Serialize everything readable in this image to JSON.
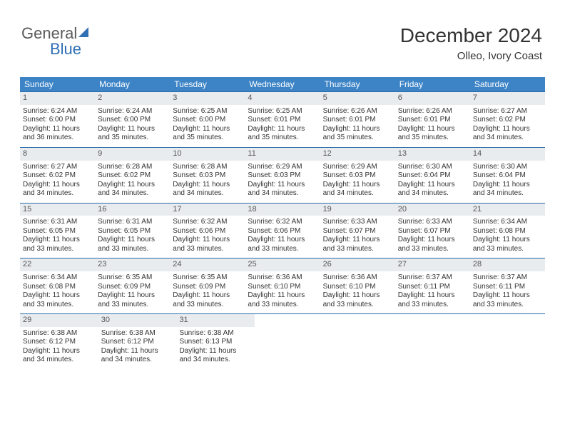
{
  "logo": {
    "text1": "General",
    "text2": "Blue"
  },
  "title": "December 2024",
  "location": "Olleo, Ivory Coast",
  "colors": {
    "header_bg": "#3d84c6",
    "row_border": "#2a6aa8",
    "daynum_bg": "#e9ecef",
    "text": "#333333",
    "logo_gray": "#5a5a5a",
    "logo_blue": "#2f6fb3"
  },
  "weekdays": [
    "Sunday",
    "Monday",
    "Tuesday",
    "Wednesday",
    "Thursday",
    "Friday",
    "Saturday"
  ],
  "weeks": [
    [
      {
        "n": "1",
        "sr": "Sunrise: 6:24 AM",
        "ss": "Sunset: 6:00 PM",
        "d1": "Daylight: 11 hours",
        "d2": "and 36 minutes."
      },
      {
        "n": "2",
        "sr": "Sunrise: 6:24 AM",
        "ss": "Sunset: 6:00 PM",
        "d1": "Daylight: 11 hours",
        "d2": "and 35 minutes."
      },
      {
        "n": "3",
        "sr": "Sunrise: 6:25 AM",
        "ss": "Sunset: 6:00 PM",
        "d1": "Daylight: 11 hours",
        "d2": "and 35 minutes."
      },
      {
        "n": "4",
        "sr": "Sunrise: 6:25 AM",
        "ss": "Sunset: 6:01 PM",
        "d1": "Daylight: 11 hours",
        "d2": "and 35 minutes."
      },
      {
        "n": "5",
        "sr": "Sunrise: 6:26 AM",
        "ss": "Sunset: 6:01 PM",
        "d1": "Daylight: 11 hours",
        "d2": "and 35 minutes."
      },
      {
        "n": "6",
        "sr": "Sunrise: 6:26 AM",
        "ss": "Sunset: 6:01 PM",
        "d1": "Daylight: 11 hours",
        "d2": "and 35 minutes."
      },
      {
        "n": "7",
        "sr": "Sunrise: 6:27 AM",
        "ss": "Sunset: 6:02 PM",
        "d1": "Daylight: 11 hours",
        "d2": "and 34 minutes."
      }
    ],
    [
      {
        "n": "8",
        "sr": "Sunrise: 6:27 AM",
        "ss": "Sunset: 6:02 PM",
        "d1": "Daylight: 11 hours",
        "d2": "and 34 minutes."
      },
      {
        "n": "9",
        "sr": "Sunrise: 6:28 AM",
        "ss": "Sunset: 6:02 PM",
        "d1": "Daylight: 11 hours",
        "d2": "and 34 minutes."
      },
      {
        "n": "10",
        "sr": "Sunrise: 6:28 AM",
        "ss": "Sunset: 6:03 PM",
        "d1": "Daylight: 11 hours",
        "d2": "and 34 minutes."
      },
      {
        "n": "11",
        "sr": "Sunrise: 6:29 AM",
        "ss": "Sunset: 6:03 PM",
        "d1": "Daylight: 11 hours",
        "d2": "and 34 minutes."
      },
      {
        "n": "12",
        "sr": "Sunrise: 6:29 AM",
        "ss": "Sunset: 6:03 PM",
        "d1": "Daylight: 11 hours",
        "d2": "and 34 minutes."
      },
      {
        "n": "13",
        "sr": "Sunrise: 6:30 AM",
        "ss": "Sunset: 6:04 PM",
        "d1": "Daylight: 11 hours",
        "d2": "and 34 minutes."
      },
      {
        "n": "14",
        "sr": "Sunrise: 6:30 AM",
        "ss": "Sunset: 6:04 PM",
        "d1": "Daylight: 11 hours",
        "d2": "and 34 minutes."
      }
    ],
    [
      {
        "n": "15",
        "sr": "Sunrise: 6:31 AM",
        "ss": "Sunset: 6:05 PM",
        "d1": "Daylight: 11 hours",
        "d2": "and 33 minutes."
      },
      {
        "n": "16",
        "sr": "Sunrise: 6:31 AM",
        "ss": "Sunset: 6:05 PM",
        "d1": "Daylight: 11 hours",
        "d2": "and 33 minutes."
      },
      {
        "n": "17",
        "sr": "Sunrise: 6:32 AM",
        "ss": "Sunset: 6:06 PM",
        "d1": "Daylight: 11 hours",
        "d2": "and 33 minutes."
      },
      {
        "n": "18",
        "sr": "Sunrise: 6:32 AM",
        "ss": "Sunset: 6:06 PM",
        "d1": "Daylight: 11 hours",
        "d2": "and 33 minutes."
      },
      {
        "n": "19",
        "sr": "Sunrise: 6:33 AM",
        "ss": "Sunset: 6:07 PM",
        "d1": "Daylight: 11 hours",
        "d2": "and 33 minutes."
      },
      {
        "n": "20",
        "sr": "Sunrise: 6:33 AM",
        "ss": "Sunset: 6:07 PM",
        "d1": "Daylight: 11 hours",
        "d2": "and 33 minutes."
      },
      {
        "n": "21",
        "sr": "Sunrise: 6:34 AM",
        "ss": "Sunset: 6:08 PM",
        "d1": "Daylight: 11 hours",
        "d2": "and 33 minutes."
      }
    ],
    [
      {
        "n": "22",
        "sr": "Sunrise: 6:34 AM",
        "ss": "Sunset: 6:08 PM",
        "d1": "Daylight: 11 hours",
        "d2": "and 33 minutes."
      },
      {
        "n": "23",
        "sr": "Sunrise: 6:35 AM",
        "ss": "Sunset: 6:09 PM",
        "d1": "Daylight: 11 hours",
        "d2": "and 33 minutes."
      },
      {
        "n": "24",
        "sr": "Sunrise: 6:35 AM",
        "ss": "Sunset: 6:09 PM",
        "d1": "Daylight: 11 hours",
        "d2": "and 33 minutes."
      },
      {
        "n": "25",
        "sr": "Sunrise: 6:36 AM",
        "ss": "Sunset: 6:10 PM",
        "d1": "Daylight: 11 hours",
        "d2": "and 33 minutes."
      },
      {
        "n": "26",
        "sr": "Sunrise: 6:36 AM",
        "ss": "Sunset: 6:10 PM",
        "d1": "Daylight: 11 hours",
        "d2": "and 33 minutes."
      },
      {
        "n": "27",
        "sr": "Sunrise: 6:37 AM",
        "ss": "Sunset: 6:11 PM",
        "d1": "Daylight: 11 hours",
        "d2": "and 33 minutes."
      },
      {
        "n": "28",
        "sr": "Sunrise: 6:37 AM",
        "ss": "Sunset: 6:11 PM",
        "d1": "Daylight: 11 hours",
        "d2": "and 33 minutes."
      }
    ],
    [
      {
        "n": "29",
        "sr": "Sunrise: 6:38 AM",
        "ss": "Sunset: 6:12 PM",
        "d1": "Daylight: 11 hours",
        "d2": "and 34 minutes."
      },
      {
        "n": "30",
        "sr": "Sunrise: 6:38 AM",
        "ss": "Sunset: 6:12 PM",
        "d1": "Daylight: 11 hours",
        "d2": "and 34 minutes."
      },
      {
        "n": "31",
        "sr": "Sunrise: 6:38 AM",
        "ss": "Sunset: 6:13 PM",
        "d1": "Daylight: 11 hours",
        "d2": "and 34 minutes."
      },
      null,
      null,
      null,
      null
    ]
  ]
}
